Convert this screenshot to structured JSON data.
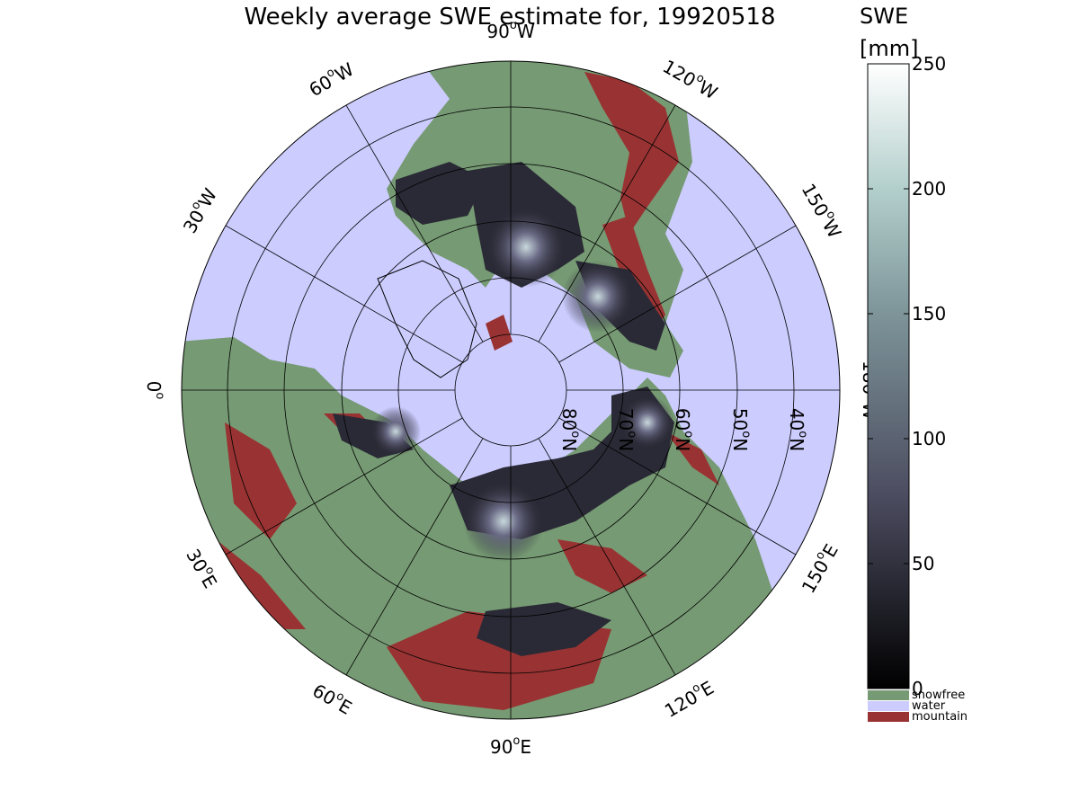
{
  "title": "Weekly average SWE estimate for, 19920518",
  "colorbar": {
    "title_line1": "SWE",
    "title_line2": "[mm]",
    "ticks": [
      "250",
      "200",
      "150",
      "100",
      "50",
      "0"
    ],
    "tick_values": [
      250,
      200,
      150,
      100,
      50,
      0
    ],
    "categories": [
      {
        "label": "snowfree",
        "color": "#769a73"
      },
      {
        "label": "water",
        "color": "#ccccff"
      },
      {
        "label": "mountain",
        "color": "#993333"
      }
    ]
  },
  "map": {
    "projection": "north polar stereographic",
    "ocean_color": "#ccccff",
    "land_color": "#769a73",
    "mountain_color": "#993333",
    "snow_color": "#2a2a36",
    "longitude_labels": [
      {
        "deg": "90",
        "hem": "W"
      },
      {
        "deg": "120",
        "hem": "W"
      },
      {
        "deg": "150",
        "hem": "W"
      },
      {
        "deg": "180",
        "hem": "W"
      },
      {
        "deg": "150",
        "hem": "E"
      },
      {
        "deg": "120",
        "hem": "E"
      },
      {
        "deg": "90",
        "hem": "E"
      },
      {
        "deg": "60",
        "hem": "E"
      },
      {
        "deg": "30",
        "hem": "E"
      },
      {
        "deg": "0",
        "hem": ""
      },
      {
        "deg": "30",
        "hem": "W"
      },
      {
        "deg": "60",
        "hem": "W"
      }
    ],
    "latitude_labels": [
      {
        "deg": "80",
        "hem": "N"
      },
      {
        "deg": "70",
        "hem": "N"
      },
      {
        "deg": "60",
        "hem": "N"
      },
      {
        "deg": "50",
        "hem": "N"
      },
      {
        "deg": "40",
        "hem": "N"
      }
    ]
  }
}
